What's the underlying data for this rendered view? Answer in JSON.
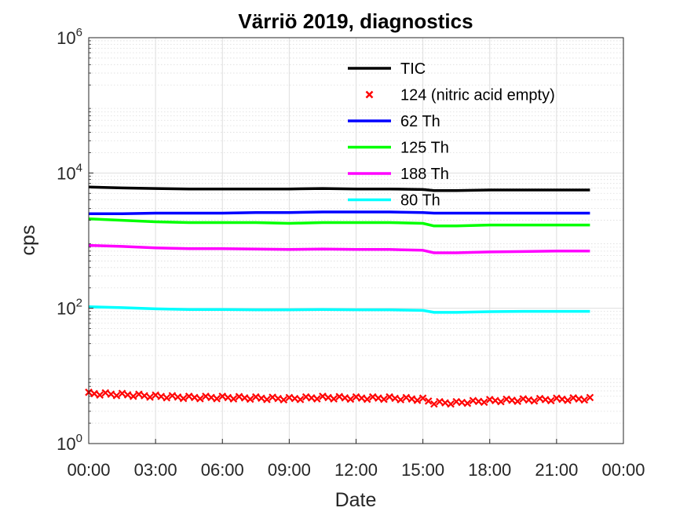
{
  "chart_data": {
    "type": "line",
    "title": "Värriö 2019, diagnostics",
    "xlabel": "Date",
    "ylabel": "cps",
    "yscale": "log",
    "ylim": [
      1,
      1000000
    ],
    "xlim": [
      0,
      24
    ],
    "grid": true,
    "legend_position": "top-center",
    "x_tick_labels": [
      "00:00",
      "03:00",
      "06:00",
      "09:00",
      "12:00",
      "15:00",
      "18:00",
      "21:00",
      "00:00"
    ],
    "y_ticks": [
      {
        "value": 1,
        "base": "10",
        "exp": "0"
      },
      {
        "value": 100,
        "base": "10",
        "exp": "2"
      },
      {
        "value": 10000,
        "base": "10",
        "exp": "4"
      },
      {
        "value": 1000000,
        "base": "10",
        "exp": "6"
      }
    ],
    "x": [
      0.0,
      1.5,
      3.0,
      4.5,
      6.0,
      7.5,
      9.0,
      10.5,
      12.0,
      13.5,
      15.0,
      15.5,
      16.5,
      18.0,
      19.5,
      21.0,
      22.5
    ],
    "series": [
      {
        "name": "TIC",
        "color": "#000000",
        "marker": "none",
        "values": [
          6200,
          6000,
          5900,
          5800,
          5800,
          5800,
          5800,
          5900,
          5800,
          5800,
          5700,
          5500,
          5500,
          5600,
          5600,
          5600,
          5600
        ]
      },
      {
        "name": "124 (nitric acid empty)",
        "color": "#ff0000",
        "marker": "x",
        "values": [
          5.5,
          5.3,
          5.0,
          4.8,
          4.8,
          4.7,
          4.6,
          4.8,
          4.7,
          4.7,
          4.5,
          4.0,
          4.0,
          4.3,
          4.4,
          4.5,
          4.6
        ]
      },
      {
        "name": "62 Th",
        "color": "#0000ff",
        "marker": "none",
        "values": [
          2500,
          2500,
          2550,
          2550,
          2550,
          2600,
          2600,
          2650,
          2650,
          2650,
          2600,
          2550,
          2550,
          2550,
          2550,
          2550,
          2550
        ]
      },
      {
        "name": "125 Th",
        "color": "#00ff00",
        "marker": "none",
        "values": [
          2100,
          2000,
          1900,
          1850,
          1850,
          1850,
          1800,
          1850,
          1850,
          1850,
          1800,
          1650,
          1650,
          1700,
          1700,
          1700,
          1700
        ]
      },
      {
        "name": "188 Th",
        "color": "#ff00ff",
        "marker": "none",
        "values": [
          850,
          820,
          780,
          760,
          760,
          750,
          740,
          750,
          740,
          740,
          720,
          660,
          660,
          680,
          690,
          700,
          700
        ]
      },
      {
        "name": "80 Th",
        "color": "#00ffff",
        "marker": "none",
        "values": [
          105,
          102,
          98,
          96,
          96,
          95,
          95,
          96,
          95,
          95,
          93,
          87,
          87,
          89,
          90,
          90,
          90
        ]
      }
    ]
  }
}
